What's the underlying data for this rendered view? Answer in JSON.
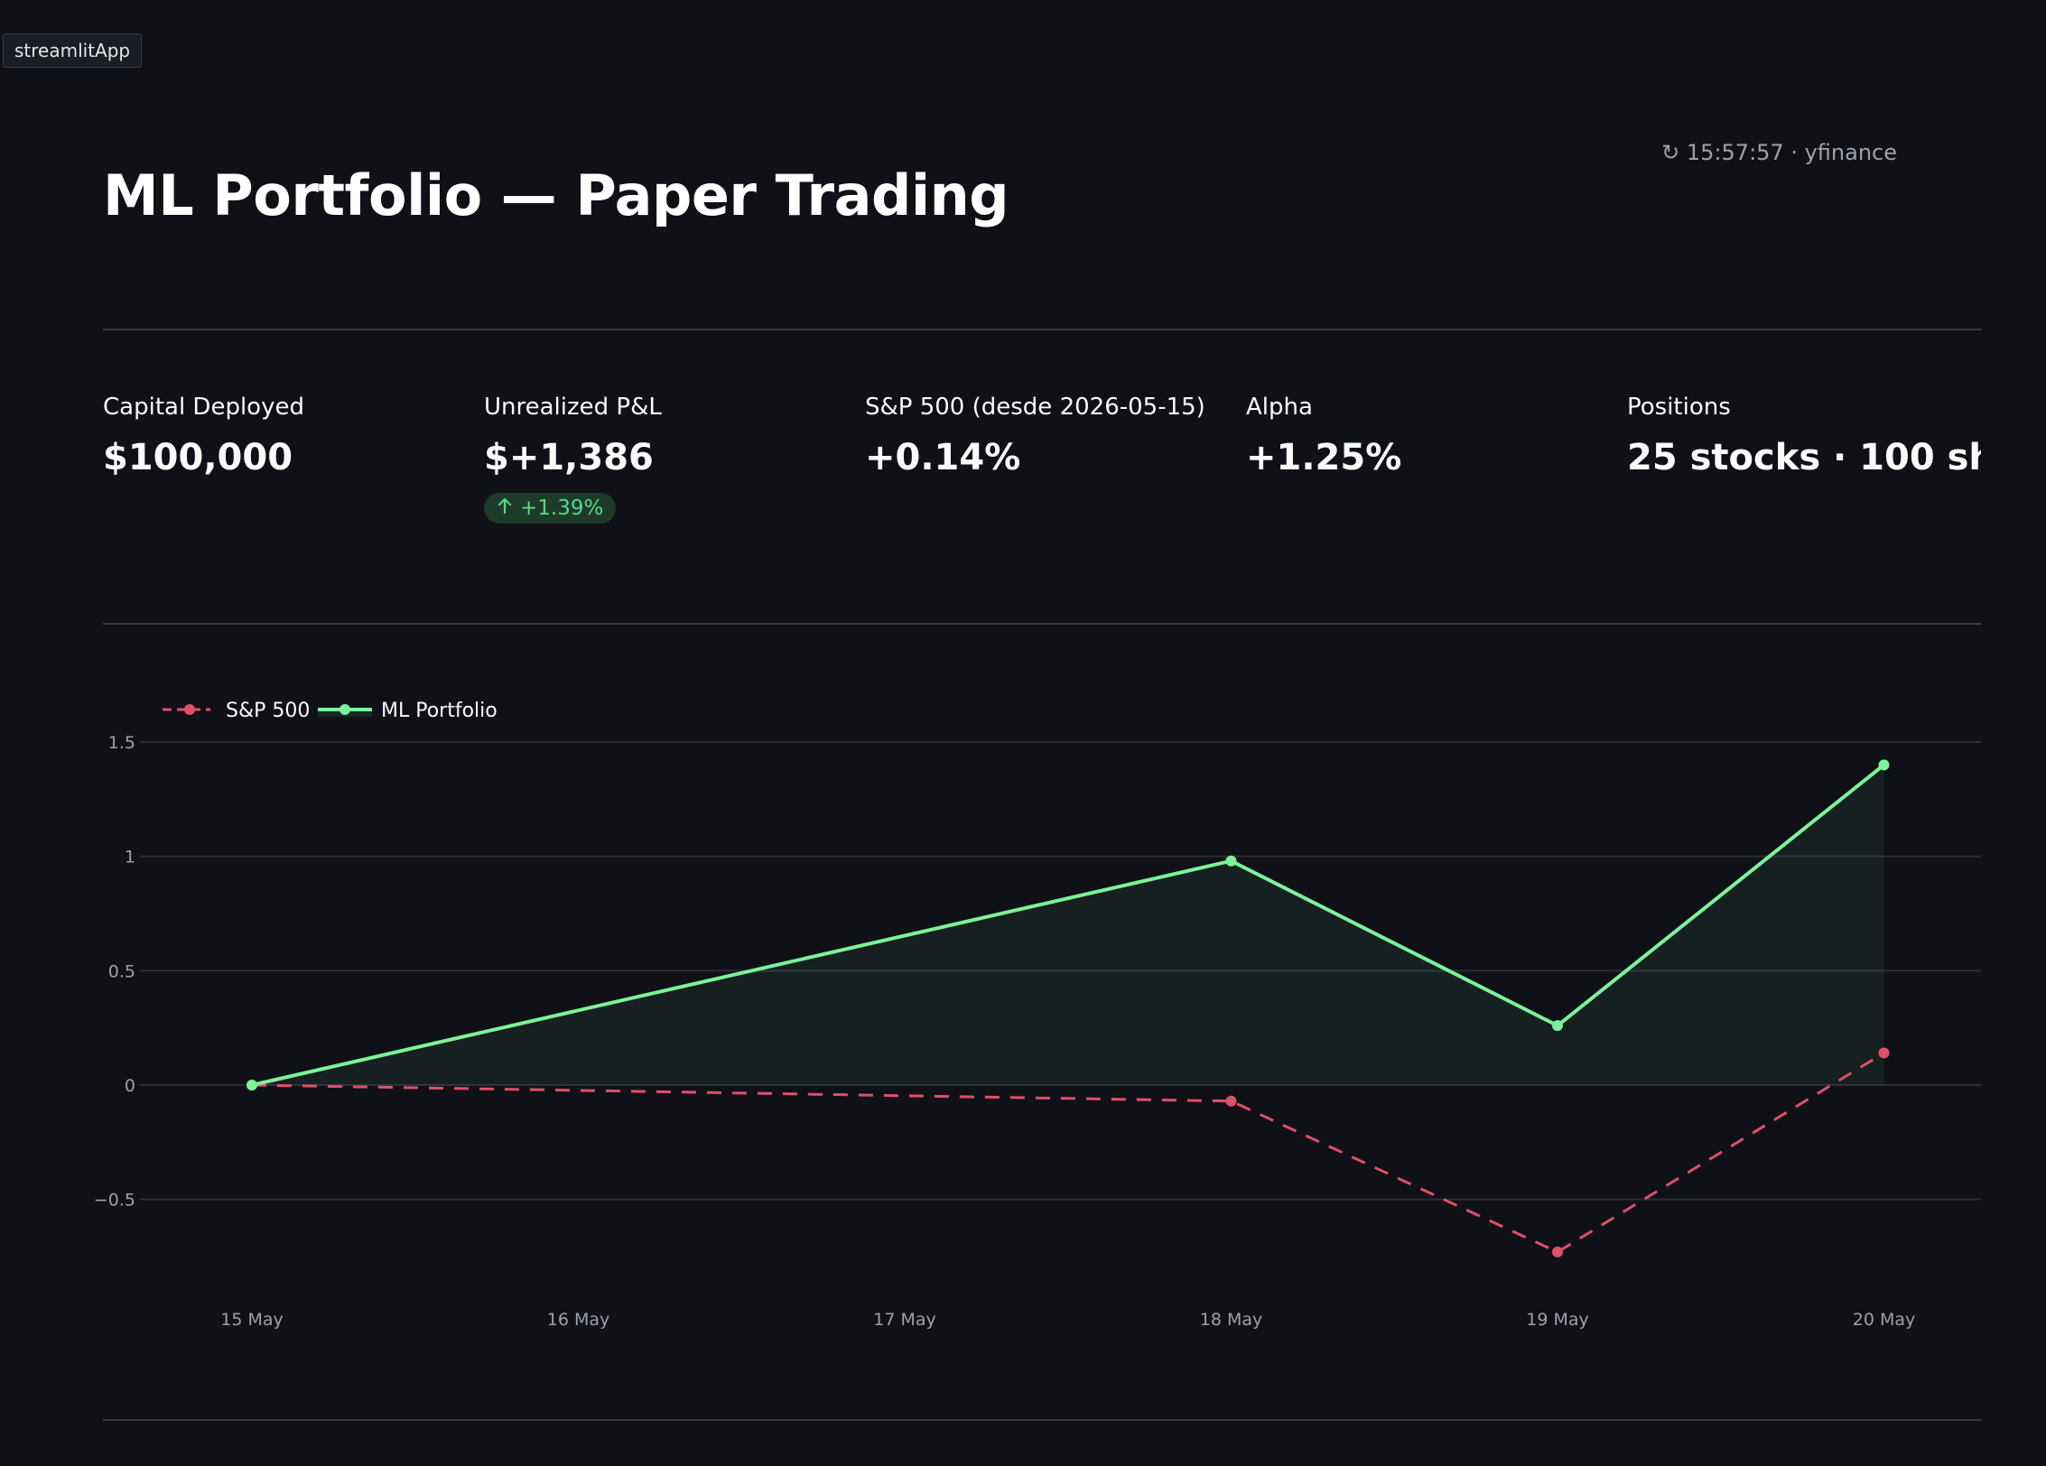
{
  "app_tab": {
    "label": "streamlitApp"
  },
  "header": {
    "refresh_status": "↻ 15:57:57 · yfinance",
    "title": "ML Portfolio — Paper Trading"
  },
  "metrics": [
    {
      "label": "Capital Deployed",
      "value": "$100,000"
    },
    {
      "label": "Unrealized P&L",
      "value": "$+1,386",
      "delta": "+1.39%"
    },
    {
      "label": "S&P 500 (desde 2026-05-15)",
      "value": "+0.14%"
    },
    {
      "label": "Alpha",
      "value": "+1.25%"
    },
    {
      "label": "Positions",
      "value": "25 stocks · 100 sh..."
    }
  ],
  "colors": {
    "background": "#0f1117",
    "portfolio_line": "#7cf29a",
    "sp500_line": "#e05068",
    "delta_positive": "#56d98a",
    "grid": "#2b2d35"
  },
  "chart_data": {
    "type": "line",
    "categories": [
      "15 May",
      "16 May",
      "17 May",
      "18 May",
      "19 May",
      "20 May"
    ],
    "series": [
      {
        "name": "S&P 500",
        "style": "dashed",
        "color": "#e05068",
        "points": [
          [
            0,
            0
          ],
          [
            3,
            -0.07
          ],
          [
            4,
            -0.73
          ],
          [
            5,
            0.14
          ]
        ]
      },
      {
        "name": "ML Portfolio",
        "style": "solid-area",
        "color": "#7cf29a",
        "points": [
          [
            0,
            0
          ],
          [
            3,
            0.98
          ],
          [
            4,
            0.26
          ],
          [
            5,
            1.4
          ]
        ]
      }
    ],
    "yticks": [
      1.5,
      1,
      0.5,
      0,
      -0.5
    ],
    "ytick_labels": [
      "1.5",
      "1",
      "0.5",
      "0",
      "−0.5"
    ],
    "ylim": [
      -0.9,
      1.6
    ],
    "grid": true,
    "legend_position": "top-left"
  }
}
